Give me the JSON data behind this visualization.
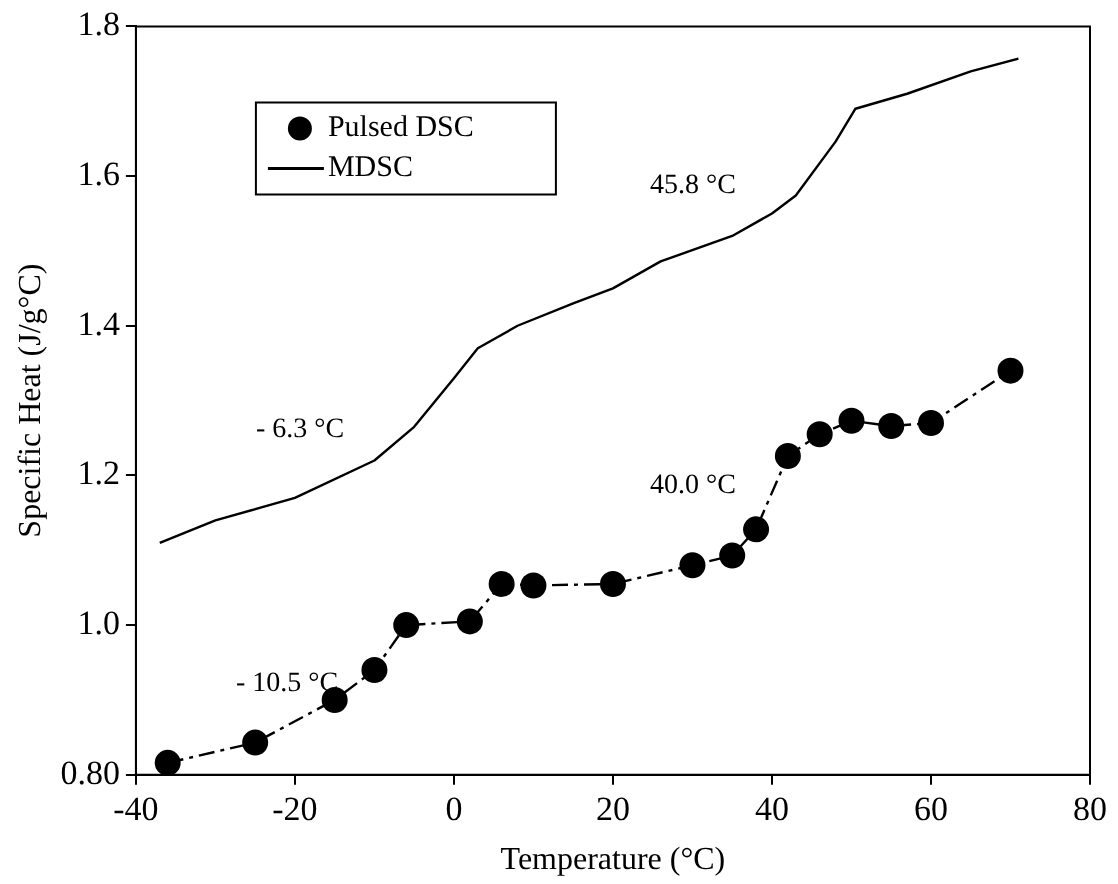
{
  "chart_data": {
    "type": "line",
    "xlabel": "Temperature (°C)",
    "ylabel": "Specific Heat (J/g°C)",
    "xlim": [
      -40,
      80
    ],
    "xticks": [
      -40,
      -20,
      0,
      20,
      40,
      60,
      80
    ],
    "ylim": [
      0.8,
      1.8
    ],
    "yticks": [
      {
        "value": 0.8,
        "label": "0.80"
      },
      {
        "value": 1.0,
        "label": "1.0"
      },
      1.2,
      1.4,
      1.6,
      1.8
    ],
    "grid": false,
    "legend": "top left",
    "series": [
      {
        "name": "Pulsed DSC",
        "color": "#000000",
        "marker": "circle",
        "line_style": "dashed",
        "x": [
          -36,
          -25,
          -15,
          -10,
          -6,
          2,
          6,
          10,
          20,
          30,
          35,
          38,
          42,
          46,
          50,
          55,
          60,
          70
        ],
        "values": [
          0.816,
          0.843,
          0.9,
          0.94,
          1.0,
          1.005,
          1.055,
          1.053,
          1.055,
          1.08,
          1.093,
          1.128,
          1.226,
          1.255,
          1.273,
          1.266,
          1.27,
          1.34
        ]
      },
      {
        "name": "MDSC",
        "color": "#000000",
        "marker": "none",
        "line_style": "solid",
        "x": [
          -37,
          -30,
          -20,
          -10,
          -5,
          0,
          3,
          8,
          15,
          20,
          26,
          35,
          40,
          43,
          48,
          50.5,
          57,
          65,
          71
        ],
        "values": [
          1.11,
          1.14,
          1.17,
          1.22,
          1.265,
          1.33,
          1.37,
          1.4,
          1.43,
          1.45,
          1.486,
          1.52,
          1.55,
          1.574,
          1.646,
          1.69,
          1.71,
          1.74,
          1.757
        ]
      }
    ],
    "annotations": [
      "45.8 °C",
      "- 6.3 °C",
      "40.0 °C",
      "- 10.5 °C"
    ]
  }
}
